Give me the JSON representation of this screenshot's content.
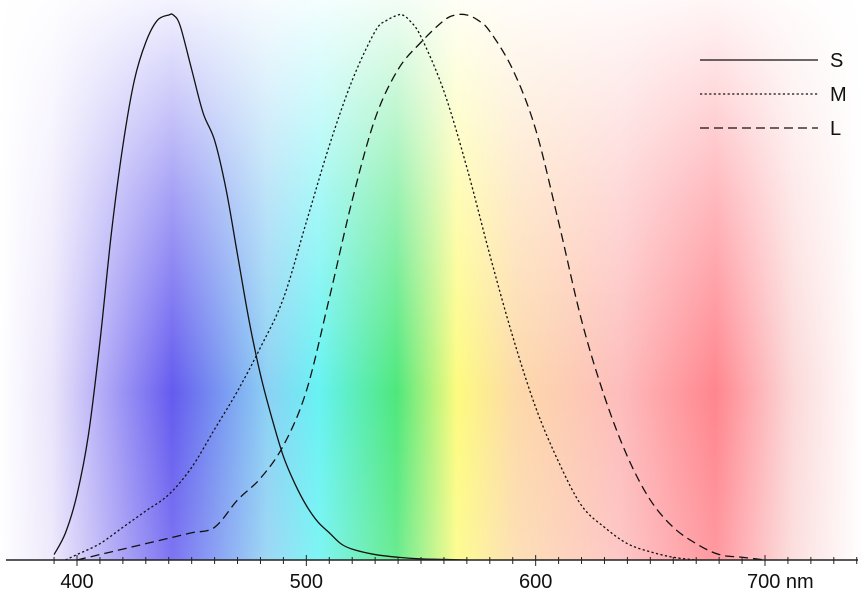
{
  "chart_data": {
    "type": "line",
    "title": "",
    "xlabel": "",
    "ylabel": "",
    "x_unit_label": "nm",
    "xlim": [
      385,
      745
    ],
    "ylim": [
      0,
      1
    ],
    "x_ticks_major": [
      400,
      500,
      600,
      700
    ],
    "x_tick_labels": [
      "400",
      "500",
      "600",
      "700 nm"
    ],
    "x_ticks_minor_step": 10,
    "grid": false,
    "legend_position": "top-right",
    "background": "visible-spectrum gradient",
    "series": [
      {
        "name": "S",
        "line_style": "solid",
        "x": [
          390,
          395,
          400,
          405,
          410,
          415,
          420,
          425,
          430,
          435,
          440,
          442,
          445,
          450,
          455,
          460,
          465,
          470,
          475,
          480,
          485,
          490,
          495,
          500,
          505,
          510,
          515,
          520,
          530,
          540,
          550,
          560,
          570
        ],
        "y": [
          0.01,
          0.05,
          0.12,
          0.23,
          0.4,
          0.6,
          0.76,
          0.88,
          0.95,
          0.99,
          1.0,
          1.0,
          0.98,
          0.9,
          0.82,
          0.77,
          0.68,
          0.56,
          0.44,
          0.34,
          0.26,
          0.19,
          0.14,
          0.1,
          0.07,
          0.05,
          0.03,
          0.02,
          0.01,
          0.005,
          0.002,
          0.001,
          0.0
        ]
      },
      {
        "name": "M",
        "line_style": "dotted",
        "x": [
          395,
          400,
          410,
          420,
          430,
          440,
          450,
          460,
          470,
          480,
          490,
          500,
          510,
          520,
          530,
          535,
          540,
          542,
          545,
          550,
          560,
          570,
          580,
          590,
          600,
          610,
          620,
          630,
          640,
          650,
          660,
          670
        ],
        "y": [
          0.0,
          0.01,
          0.03,
          0.06,
          0.09,
          0.12,
          0.17,
          0.24,
          0.31,
          0.39,
          0.48,
          0.62,
          0.76,
          0.88,
          0.97,
          0.99,
          1.0,
          1.0,
          0.99,
          0.96,
          0.86,
          0.72,
          0.56,
          0.41,
          0.28,
          0.18,
          0.1,
          0.06,
          0.03,
          0.015,
          0.005,
          0.0
        ]
      },
      {
        "name": "L",
        "line_style": "dashed",
        "x": [
          400,
          410,
          420,
          430,
          440,
          450,
          460,
          470,
          480,
          490,
          500,
          510,
          520,
          530,
          540,
          550,
          560,
          565,
          570,
          575,
          580,
          590,
          600,
          610,
          620,
          630,
          640,
          650,
          660,
          670,
          680,
          690,
          700
        ],
        "y": [
          0.0,
          0.01,
          0.02,
          0.03,
          0.04,
          0.05,
          0.06,
          0.11,
          0.15,
          0.21,
          0.31,
          0.48,
          0.66,
          0.81,
          0.9,
          0.95,
          0.99,
          1.0,
          1.0,
          0.99,
          0.97,
          0.9,
          0.79,
          0.62,
          0.44,
          0.3,
          0.19,
          0.11,
          0.06,
          0.03,
          0.01,
          0.005,
          0.0
        ]
      }
    ]
  }
}
